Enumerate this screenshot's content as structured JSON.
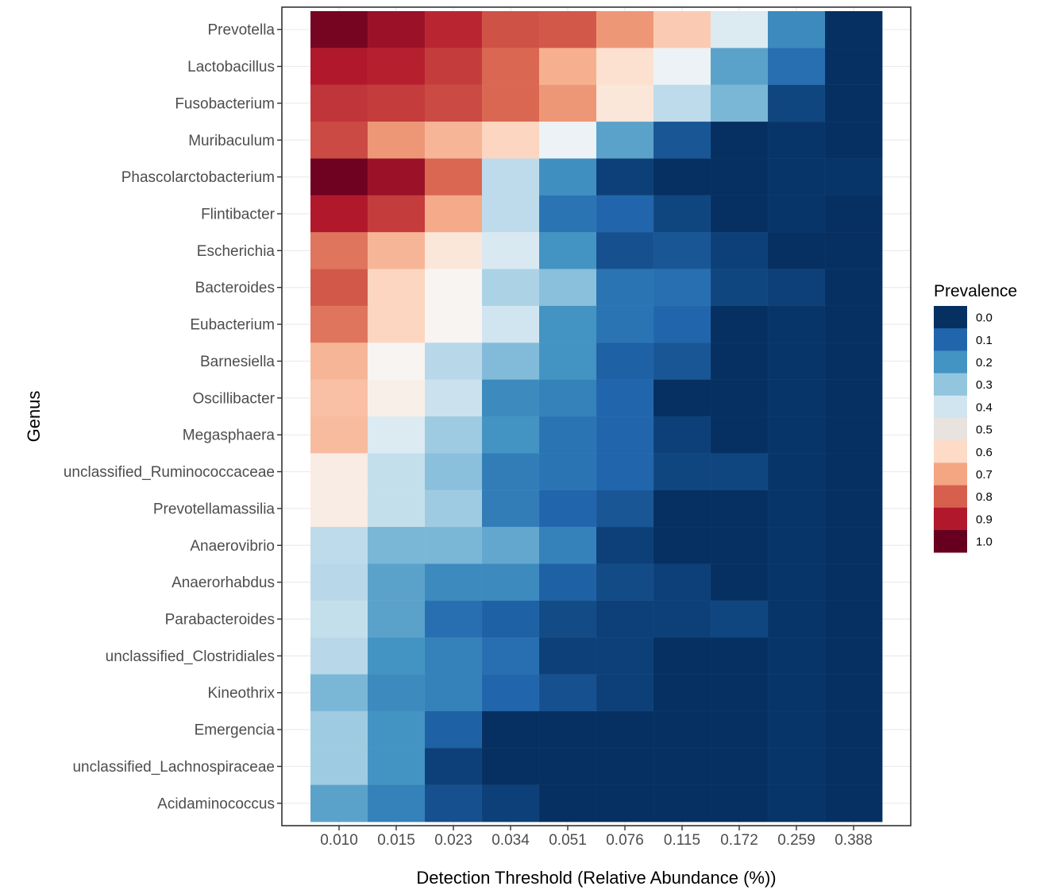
{
  "chart_data": {
    "type": "heatmap",
    "xlabel": "Detection Threshold (Relative Abundance (%))",
    "ylabel": "Genus",
    "x": [
      "0.010",
      "0.015",
      "0.023",
      "0.034",
      "0.051",
      "0.076",
      "0.115",
      "0.172",
      "0.259",
      "0.388"
    ],
    "y": [
      "Prevotella",
      "Lactobacillus",
      "Fusobacterium",
      "Muribaculum",
      "Phascolarctobacterium",
      "Flintibacter",
      "Escherichia",
      "Bacteroides",
      "Eubacterium",
      "Barnesiella",
      "Oscillibacter",
      "Megasphaera",
      "unclassified_Ruminococcaceae",
      "Prevotellamassilia",
      "Anaerovibrio",
      "Anaerorhabdus",
      "Parabacteroides",
      "unclassified_Clostridiales",
      "Kineothrix",
      "Emergencia",
      "unclassified_Lachnospiraceae",
      "Acidaminococcus"
    ],
    "values": [
      [
        0.98,
        0.93,
        0.88,
        0.82,
        0.81,
        0.72,
        0.63,
        0.43,
        0.18,
        0.0
      ],
      [
        0.9,
        0.89,
        0.85,
        0.79,
        0.68,
        0.58,
        0.47,
        0.23,
        0.12,
        0.0
      ],
      [
        0.86,
        0.85,
        0.83,
        0.79,
        0.72,
        0.56,
        0.37,
        0.27,
        0.04,
        0.0
      ],
      [
        0.83,
        0.72,
        0.67,
        0.61,
        0.47,
        0.23,
        0.07,
        0.0,
        0.01,
        0.0
      ],
      [
        0.99,
        0.93,
        0.79,
        0.37,
        0.19,
        0.03,
        0.0,
        0.0,
        0.01,
        0.01
      ],
      [
        0.9,
        0.85,
        0.69,
        0.37,
        0.13,
        0.1,
        0.04,
        0.0,
        0.01,
        0.0
      ],
      [
        0.77,
        0.67,
        0.56,
        0.42,
        0.2,
        0.06,
        0.07,
        0.03,
        0.0,
        0.0
      ],
      [
        0.81,
        0.61,
        0.51,
        0.34,
        0.29,
        0.13,
        0.12,
        0.04,
        0.03,
        0.0
      ],
      [
        0.77,
        0.61,
        0.51,
        0.4,
        0.2,
        0.13,
        0.1,
        0.0,
        0.01,
        0.0
      ],
      [
        0.67,
        0.51,
        0.36,
        0.28,
        0.2,
        0.09,
        0.07,
        0.0,
        0.01,
        0.0
      ],
      [
        0.65,
        0.53,
        0.39,
        0.18,
        0.16,
        0.1,
        0.0,
        0.0,
        0.01,
        0.0
      ],
      [
        0.66,
        0.43,
        0.32,
        0.2,
        0.13,
        0.1,
        0.03,
        0.0,
        0.01,
        0.0
      ],
      [
        0.54,
        0.38,
        0.29,
        0.15,
        0.13,
        0.1,
        0.04,
        0.04,
        0.01,
        0.0
      ],
      [
        0.54,
        0.38,
        0.32,
        0.15,
        0.1,
        0.07,
        0.0,
        0.0,
        0.01,
        0.0
      ],
      [
        0.37,
        0.27,
        0.27,
        0.24,
        0.16,
        0.03,
        0.0,
        0.0,
        0.01,
        0.0
      ],
      [
        0.36,
        0.23,
        0.18,
        0.18,
        0.09,
        0.05,
        0.03,
        0.0,
        0.01,
        0.0
      ],
      [
        0.38,
        0.23,
        0.12,
        0.09,
        0.05,
        0.03,
        0.03,
        0.04,
        0.01,
        0.0
      ],
      [
        0.36,
        0.2,
        0.16,
        0.12,
        0.03,
        0.03,
        0.0,
        0.0,
        0.01,
        0.0
      ],
      [
        0.27,
        0.18,
        0.16,
        0.1,
        0.06,
        0.03,
        0.0,
        0.0,
        0.01,
        0.0
      ],
      [
        0.32,
        0.2,
        0.09,
        0.0,
        0.0,
        0.0,
        0.0,
        0.0,
        0.01,
        0.0
      ],
      [
        0.32,
        0.2,
        0.03,
        0.0,
        0.0,
        0.0,
        0.0,
        0.0,
        0.01,
        0.0
      ],
      [
        0.23,
        0.16,
        0.06,
        0.03,
        0.0,
        0.0,
        0.0,
        0.0,
        0.01,
        0.0
      ]
    ],
    "legend": {
      "title": "Prevalence",
      "position": "right",
      "entries": [
        {
          "label": "0.0",
          "color": "#053061"
        },
        {
          "label": "0.1",
          "color": "#2166ac"
        },
        {
          "label": "0.2",
          "color": "#4393c3"
        },
        {
          "label": "0.3",
          "color": "#92c5de"
        },
        {
          "label": "0.4",
          "color": "#d1e5f0"
        },
        {
          "label": "0.5",
          "color": "#e8e3df"
        },
        {
          "label": "0.6",
          "color": "#fddbc7"
        },
        {
          "label": "0.7",
          "color": "#f4a582"
        },
        {
          "label": "0.8",
          "color": "#d6604d"
        },
        {
          "label": "0.9",
          "color": "#b2182b"
        },
        {
          "label": "1.0",
          "color": "#67001f"
        }
      ]
    },
    "color_scale": [
      "#053061",
      "#2166ac",
      "#4393c3",
      "#92c5de",
      "#d1e5f0",
      "#f7f7f7",
      "#fddbc7",
      "#f4a582",
      "#d6604d",
      "#b2182b",
      "#67001f"
    ],
    "value_range": [
      0,
      1
    ],
    "grid": true,
    "background": "#ffffff",
    "gridline_color": "#ebebeb",
    "panel_border_color": "#333333"
  }
}
